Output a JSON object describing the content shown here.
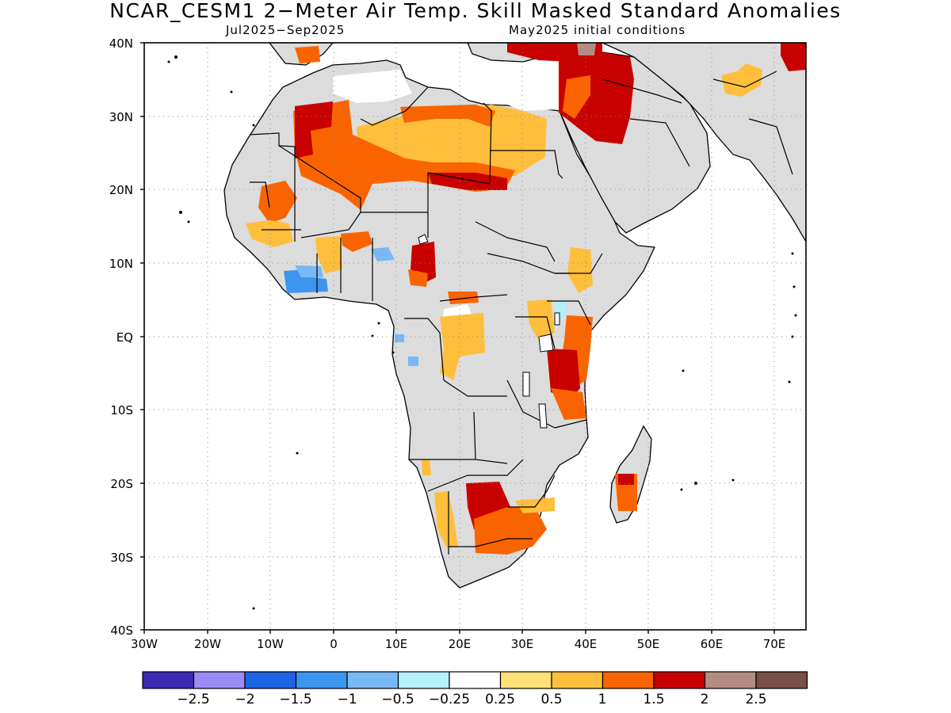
{
  "header": {
    "title": "NCAR_CESM1 2−Meter Air Temp. Skill Masked Standard Anomalies",
    "period": "Jul2025−Sep2025",
    "init": "May2025 initial conditions"
  },
  "map": {
    "region": "Africa",
    "lon_range": [
      -30,
      75
    ],
    "lat_range": [
      -40,
      40
    ],
    "grid": "dotted",
    "masked_color": "#dcdcdc",
    "lon_ticks": [
      "30W",
      "20W",
      "10W",
      "0",
      "10E",
      "20E",
      "30E",
      "40E",
      "50E",
      "60E",
      "70E"
    ],
    "lat_ticks": [
      "40N",
      "30N",
      "20N",
      "10N",
      "EQ",
      "10S",
      "20S",
      "30S",
      "40S"
    ]
  },
  "colorbar": {
    "colors": [
      "#3c28b4",
      "#9b8cf5",
      "#1e64e6",
      "#3c96f0",
      "#78b9f5",
      "#b4f0fa",
      "#ffffff",
      "#ffe178",
      "#ffbe3c",
      "#fa6400",
      "#c80000",
      "#b48c82",
      "#785046"
    ],
    "labels": [
      "−2.5",
      "−2",
      "−1.5",
      "−1",
      "−0.5",
      "−0.25",
      "0.25",
      "0.5",
      "1",
      "1.5",
      "2",
      "2.5"
    ]
  }
}
